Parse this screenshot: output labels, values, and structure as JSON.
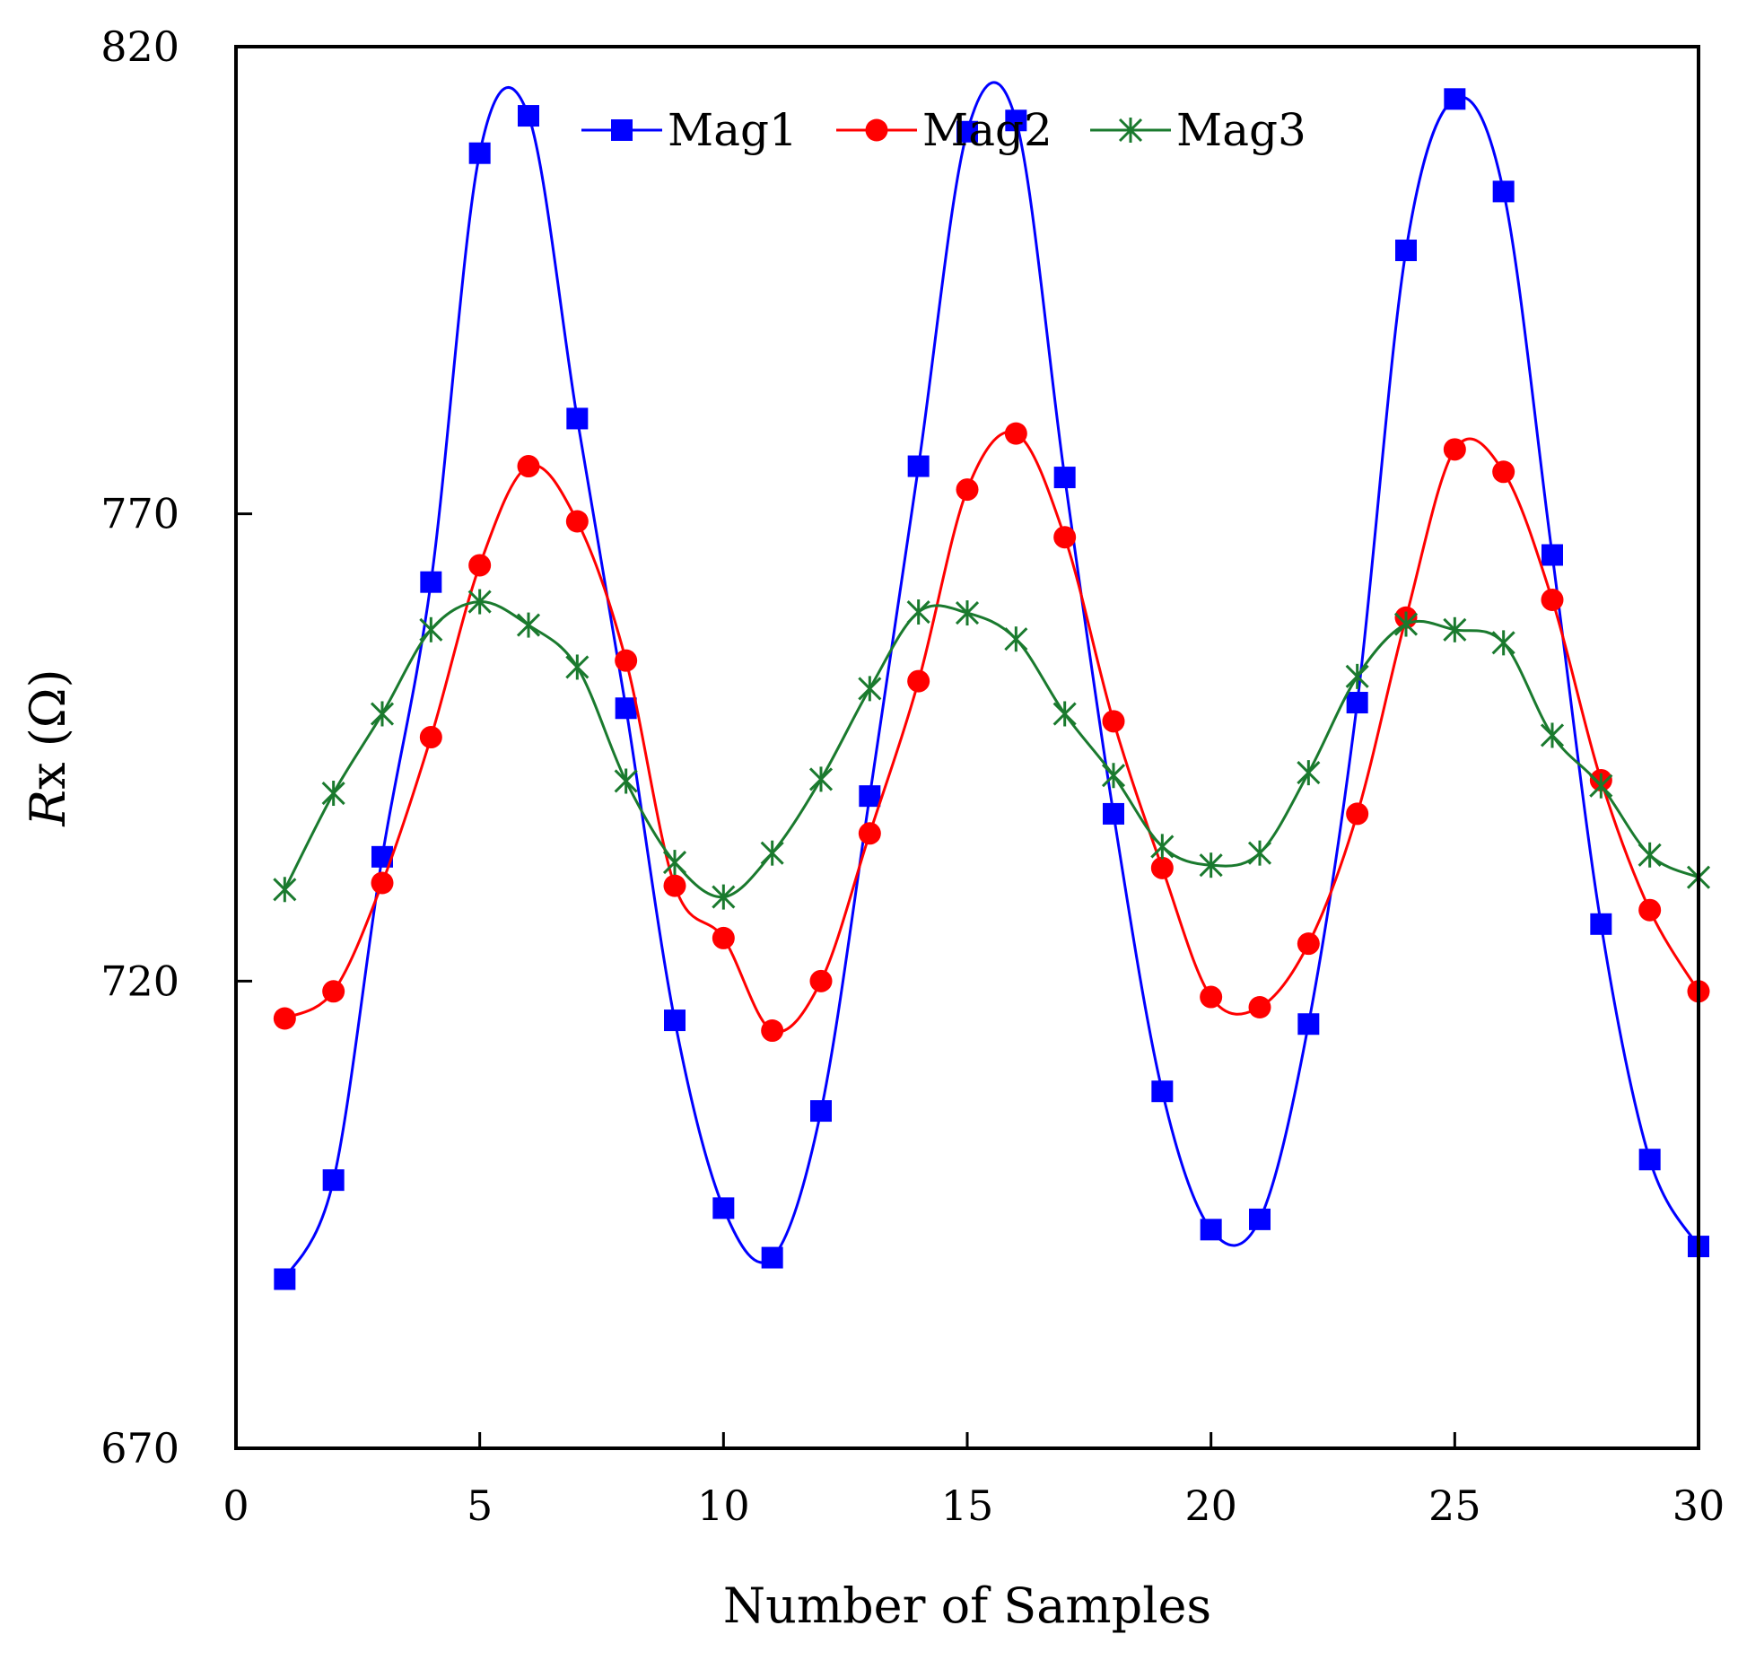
{
  "chart_data": {
    "type": "line",
    "title": "",
    "xlabel": "Number of Samples",
    "ylabel_italic": "R",
    "ylabel_rest": "x (Ω)",
    "xlim": [
      0,
      30
    ],
    "ylim": [
      670,
      820
    ],
    "xticks": [
      0,
      5,
      10,
      15,
      20,
      25,
      30
    ],
    "yticks": [
      670,
      720,
      770,
      820
    ],
    "grid": false,
    "legend": "top-center",
    "x": [
      1,
      2,
      3,
      4,
      5,
      6,
      7,
      8,
      9,
      10,
      11,
      12,
      13,
      14,
      15,
      16,
      17,
      18,
      19,
      20,
      21,
      22,
      23,
      24,
      25,
      26,
      27,
      28,
      29,
      30
    ],
    "series": [
      {
        "name": "Mag1",
        "color": "#0000ff",
        "marker": "square",
        "values": [
          688.1,
          698.7,
          733.3,
          762.7,
          808.6,
          812.6,
          780.2,
          749.2,
          715.8,
          695.7,
          690.4,
          706.1,
          739.8,
          775.1,
          810.9,
          812.1,
          773.9,
          737.9,
          708.2,
          693.4,
          694.5,
          715.4,
          749.8,
          798.2,
          814.4,
          804.5,
          765.6,
          726.1,
          700.9,
          691.6
        ]
      },
      {
        "name": "Mag2",
        "color": "#ff0000",
        "marker": "circle",
        "values": [
          716.0,
          718.9,
          730.5,
          746.1,
          764.5,
          775.1,
          769.2,
          754.3,
          730.2,
          724.6,
          714.7,
          720.0,
          735.8,
          752.1,
          772.6,
          778.6,
          767.5,
          747.8,
          732.1,
          718.3,
          717.2,
          724.0,
          737.9,
          758.9,
          776.9,
          774.5,
          760.8,
          741.5,
          727.6,
          718.9
        ]
      },
      {
        "name": "Mag3",
        "color": "#1a7a2e",
        "marker": "asterisk",
        "values": [
          729.8,
          740.1,
          748.6,
          757.6,
          760.6,
          758.1,
          753.6,
          741.4,
          732.7,
          729.0,
          733.7,
          741.6,
          751.3,
          759.5,
          759.4,
          756.6,
          748.6,
          742.0,
          734.4,
          732.4,
          733.7,
          742.3,
          752.6,
          758.2,
          757.6,
          756.2,
          746.3,
          740.9,
          733.5,
          731.1
        ]
      }
    ]
  }
}
